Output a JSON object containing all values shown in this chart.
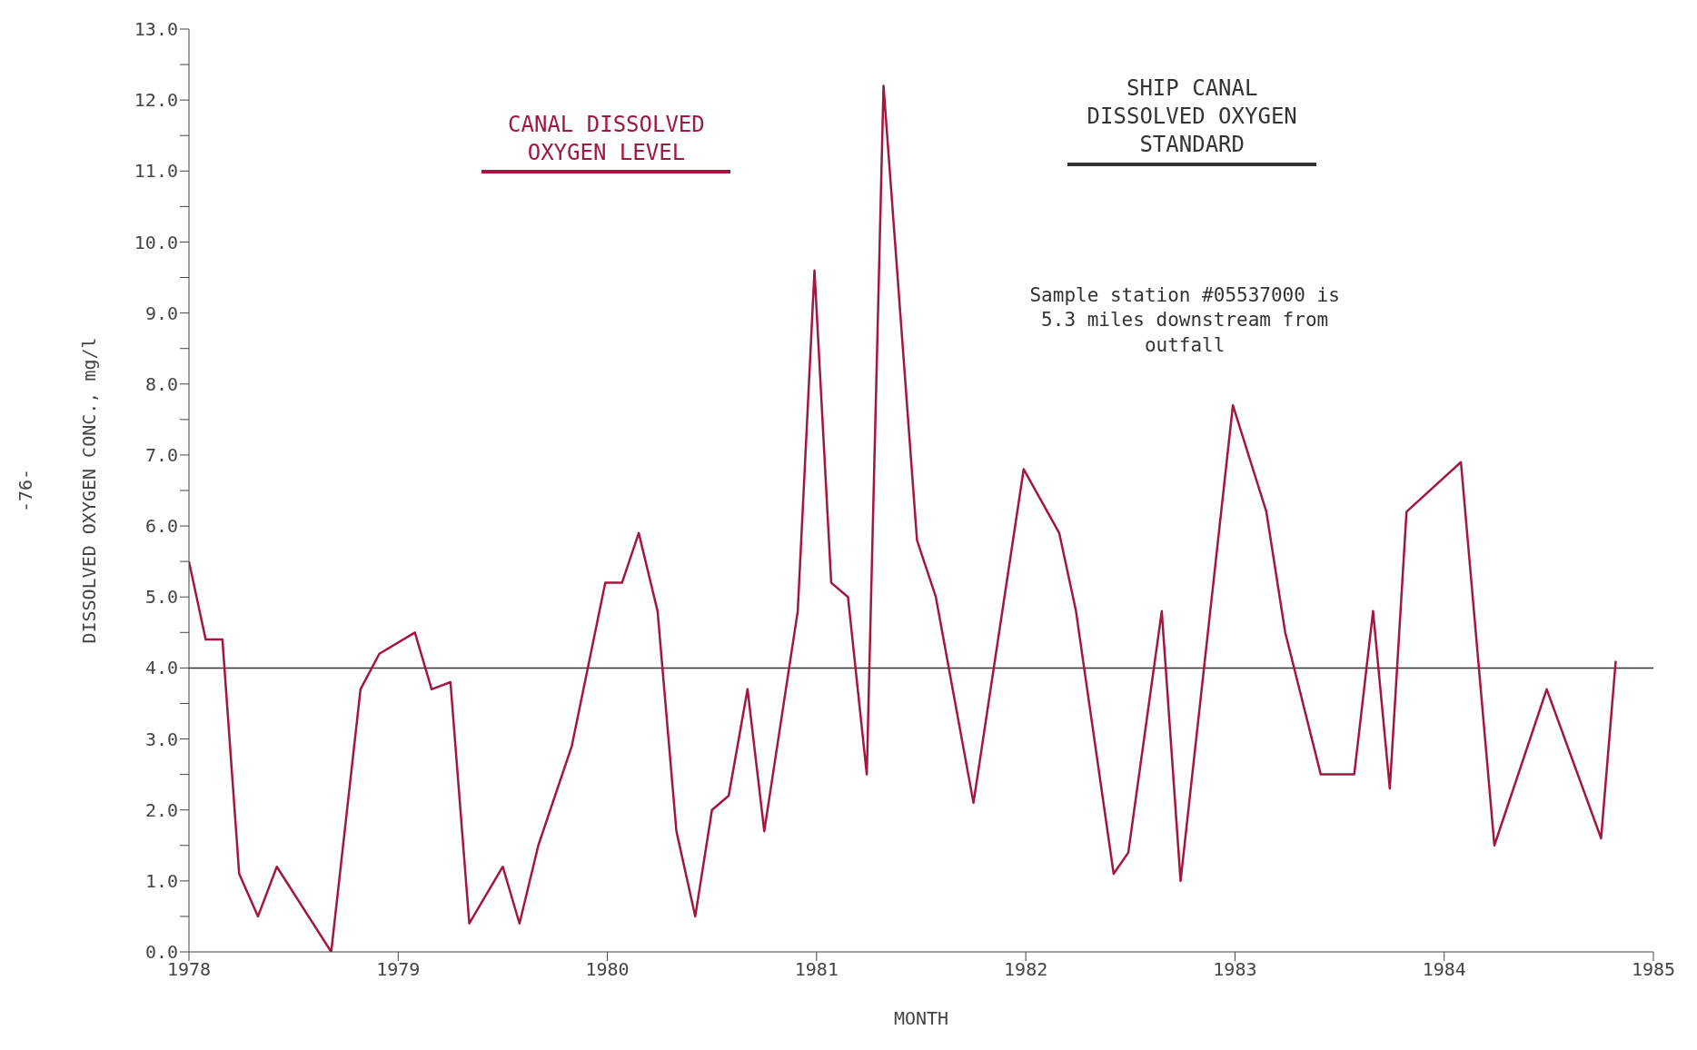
{
  "chart_data": {
    "type": "line",
    "xlabel": "MONTH",
    "ylabel": "DISSOLVED OXYGEN CONC., mg/l",
    "x": [
      1978.0,
      1978.08,
      1978.16,
      1978.24,
      1978.33,
      1978.42,
      1978.68,
      1978.82,
      1978.91,
      1979.08,
      1979.16,
      1979.25,
      1979.34,
      1979.5,
      1979.58,
      1979.67,
      1979.83,
      1979.99,
      1980.07,
      1980.15,
      1980.24,
      1980.33,
      1980.42,
      1980.5,
      1980.58,
      1980.67,
      1980.75,
      1980.91,
      1980.99,
      1981.07,
      1981.15,
      1981.24,
      1981.32,
      1981.48,
      1981.57,
      1981.75,
      1981.99,
      1982.16,
      1982.24,
      1982.42,
      1982.49,
      1982.65,
      1982.74,
      1982.99,
      1983.15,
      1983.24,
      1983.41,
      1983.57,
      1983.66,
      1983.74,
      1983.82,
      1984.08,
      1984.24,
      1984.49,
      1984.75,
      1984.82
    ],
    "series": [
      {
        "name": "CANAL DISSOLVED OXYGEN LEVEL",
        "color": "#a3173f",
        "values": [
          5.5,
          4.4,
          4.4,
          1.1,
          0.5,
          1.2,
          0,
          3.7,
          4.2,
          4.5,
          3.7,
          3.8,
          0.4,
          1.2,
          0.4,
          1.5,
          2.9,
          5.2,
          5.2,
          5.9,
          4.8,
          1.7,
          0.5,
          2.0,
          2.2,
          3.7,
          1.7,
          4.8,
          9.6,
          5.2,
          5.0,
          2.5,
          12.2,
          5.8,
          5.0,
          2.1,
          6.8,
          5.9,
          4.8,
          1.1,
          1.4,
          4.8,
          1.0,
          7.7,
          6.2,
          4.5,
          2.5,
          2.5,
          4.8,
          2.3,
          6.2,
          6.9,
          1.5,
          3.7,
          1.6,
          4.1
        ]
      }
    ],
    "ref_lines": [
      {
        "axis": "y",
        "value": 4,
        "label": "SHIP CANAL DISSOLVED OXYGEN STANDARD",
        "color": "#333333",
        "line_style": "solid"
      }
    ],
    "xlim": [
      1978,
      1985
    ],
    "xticks": [
      1978,
      1979,
      1980,
      1981,
      1982,
      1983,
      1984,
      1985
    ],
    "ylim": [
      0,
      13
    ],
    "yticks": [
      {
        "value": 0,
        "label": "0.0"
      },
      {
        "value": 0.5,
        "label": null
      },
      {
        "value": 1,
        "label": "1.0"
      },
      {
        "value": 1.5,
        "label": null
      },
      {
        "value": 2,
        "label": "2.0"
      },
      {
        "value": 2.5,
        "label": null
      },
      {
        "value": 3,
        "label": "3.0"
      },
      {
        "value": 3.5,
        "label": null
      },
      {
        "value": 4,
        "label": "4.0"
      },
      {
        "value": 4.5,
        "label": null
      },
      {
        "value": 5,
        "label": "5.0"
      },
      {
        "value": 5.5,
        "label": null
      },
      {
        "value": 6,
        "label": "6.0"
      },
      {
        "value": 6.5,
        "label": null
      },
      {
        "value": 7,
        "label": "7.0"
      },
      {
        "value": 7.5,
        "label": null
      },
      {
        "value": 8,
        "label": "8.0"
      },
      {
        "value": 8.5,
        "label": null
      },
      {
        "value": 9,
        "label": "9.0"
      },
      {
        "value": 9.5,
        "label": null
      },
      {
        "value": 10,
        "label": "10.0"
      },
      {
        "value": 10.5,
        "label": null
      },
      {
        "value": 11,
        "label": "11.0"
      },
      {
        "value": 11.5,
        "label": null
      },
      {
        "value": 12,
        "label": "12.0"
      },
      {
        "value": 12.5,
        "label": null
      },
      {
        "value": 13,
        "label": "13.0"
      }
    ],
    "grid": false,
    "legend": "top",
    "marker": "none",
    "line_style": "solid",
    "annotations": [
      "Sample station #05537000 is 5.3 miles downstream from outfall",
      "-76-"
    ]
  }
}
